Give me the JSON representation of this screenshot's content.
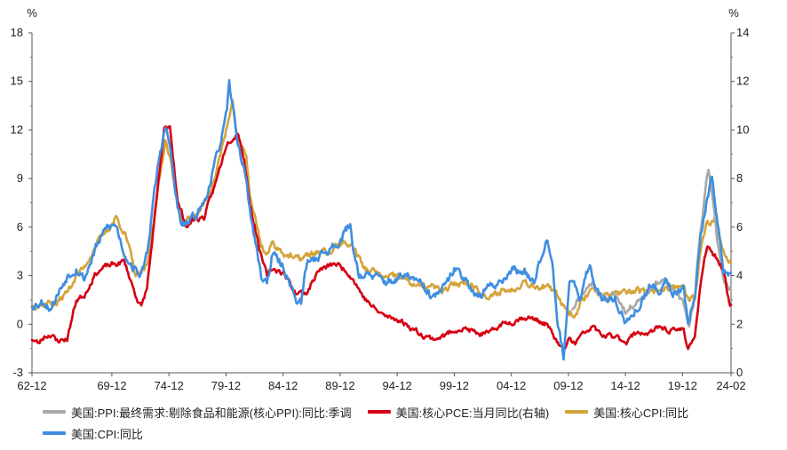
{
  "chart_data": {
    "type": "line",
    "title": "",
    "left_axis": {
      "unit": "%",
      "ticks": [
        -3,
        0,
        3,
        6,
        9,
        12,
        15,
        18
      ],
      "ylim": [
        -3,
        18
      ]
    },
    "right_axis": {
      "unit": "%",
      "ticks": [
        0,
        2,
        4,
        6,
        8,
        10,
        12,
        14
      ],
      "ylim": [
        0,
        14
      ]
    },
    "x_range": [
      1962.917,
      2024.167
    ],
    "x_ticks": [
      {
        "label": "62-12",
        "t": 1962.917
      },
      {
        "label": "69-12",
        "t": 1969.917
      },
      {
        "label": "74-12",
        "t": 1974.917
      },
      {
        "label": "79-12",
        "t": 1979.917
      },
      {
        "label": "84-12",
        "t": 1984.917
      },
      {
        "label": "89-12",
        "t": 1989.917
      },
      {
        "label": "94-12",
        "t": 1994.917
      },
      {
        "label": "99-12",
        "t": 1999.917
      },
      {
        "label": "04-12",
        "t": 2004.917
      },
      {
        "label": "09-12",
        "t": 2009.917
      },
      {
        "label": "14-12",
        "t": 2014.917
      },
      {
        "label": "19-12",
        "t": 2019.917
      },
      {
        "label": "24-02",
        "t": 2024.167
      }
    ],
    "series": [
      {
        "name": "美国:PPI:最终需求:剔除食品和能源(核心PPI):同比:季调",
        "axis": "left",
        "color": "#a9a9a9",
        "points": [
          [
            2010.25,
            1.0
          ],
          [
            2011,
            1.8
          ],
          [
            2012,
            2.6
          ],
          [
            2013,
            1.5
          ],
          [
            2014,
            1.8
          ],
          [
            2015,
            0.8
          ],
          [
            2016,
            1.5
          ],
          [
            2017,
            2.1
          ],
          [
            2018,
            2.7
          ],
          [
            2019,
            2.3
          ],
          [
            2020,
            1.3
          ],
          [
            2020.5,
            0.2
          ],
          [
            2021,
            1.5
          ],
          [
            2021.3,
            4.5
          ],
          [
            2021.7,
            7.0
          ],
          [
            2022.0,
            8.9
          ],
          [
            2022.2,
            9.6
          ],
          [
            2022.5,
            8.0
          ],
          [
            2023,
            5.0
          ],
          [
            2023.5,
            2.8
          ],
          [
            2024.0,
            2.0
          ],
          [
            2024.167,
            2.1
          ]
        ]
      },
      {
        "name": "美国:核心PCE:当月同比(右轴)",
        "axis": "right",
        "color": "#d60012",
        "points": [
          [
            1962.917,
            1.4
          ],
          [
            1963.5,
            1.2
          ],
          [
            1964,
            1.5
          ],
          [
            1964.7,
            1.6
          ],
          [
            1965,
            1.3
          ],
          [
            1966,
            1.4
          ],
          [
            1966.8,
            3.0
          ],
          [
            1967.5,
            3.2
          ],
          [
            1968.5,
            4.1
          ],
          [
            1969.5,
            4.4
          ],
          [
            1970.5,
            4.5
          ],
          [
            1971,
            4.6
          ],
          [
            1972,
            3.2
          ],
          [
            1972.5,
            2.7
          ],
          [
            1973,
            3.5
          ],
          [
            1974,
            7.8
          ],
          [
            1974.5,
            10.0
          ],
          [
            1975,
            10.2
          ],
          [
            1975.7,
            7.0
          ],
          [
            1976.5,
            6.0
          ],
          [
            1977,
            6.3
          ],
          [
            1978,
            6.4
          ],
          [
            1979,
            7.8
          ],
          [
            1980,
            9.5
          ],
          [
            1981,
            9.9
          ],
          [
            1981.5,
            8.8
          ],
          [
            1982,
            7.0
          ],
          [
            1983,
            4.8
          ],
          [
            1983.5,
            4.0
          ],
          [
            1984,
            4.3
          ],
          [
            1985,
            4.1
          ],
          [
            1986,
            3.3
          ],
          [
            1987,
            3.3
          ],
          [
            1988,
            4.2
          ],
          [
            1989.5,
            4.5
          ],
          [
            1990.5,
            4.2
          ],
          [
            1991,
            3.9
          ],
          [
            1992,
            3.1
          ],
          [
            1993,
            2.6
          ],
          [
            1994,
            2.3
          ],
          [
            1995,
            2.2
          ],
          [
            1996,
            1.9
          ],
          [
            1997,
            1.6
          ],
          [
            1998,
            1.4
          ],
          [
            1999,
            1.5
          ],
          [
            2000,
            1.8
          ],
          [
            2001,
            1.8
          ],
          [
            2002,
            1.6
          ],
          [
            2003,
            1.6
          ],
          [
            2004,
            2.0
          ],
          [
            2005,
            2.1
          ],
          [
            2006,
            2.3
          ],
          [
            2007,
            2.2
          ],
          [
            2008,
            2.0
          ],
          [
            2009,
            1.2
          ],
          [
            2009.5,
            0.9
          ],
          [
            2010,
            1.4
          ],
          [
            2010.5,
            1.2
          ],
          [
            2011,
            1.5
          ],
          [
            2012,
            1.9
          ],
          [
            2013,
            1.5
          ],
          [
            2014,
            1.5
          ],
          [
            2015,
            1.3
          ],
          [
            2016,
            1.7
          ],
          [
            2017,
            1.6
          ],
          [
            2018,
            1.9
          ],
          [
            2019,
            1.7
          ],
          [
            2020,
            1.8
          ],
          [
            2020.4,
            1.0
          ],
          [
            2020.8,
            1.4
          ],
          [
            2021,
            1.5
          ],
          [
            2021.5,
            3.6
          ],
          [
            2022.1,
            5.3
          ],
          [
            2022.5,
            4.9
          ],
          [
            2023,
            4.7
          ],
          [
            2023.5,
            4.2
          ],
          [
            2024.0,
            2.9
          ],
          [
            2024.167,
            2.8
          ]
        ]
      },
      {
        "name": "美国:核心CPI:同比",
        "axis": "left",
        "color": "#d4a43a",
        "points": [
          [
            1962.917,
            1.1
          ],
          [
            1963.5,
            1.3
          ],
          [
            1964,
            1.2
          ],
          [
            1964.5,
            1.4
          ],
          [
            1965,
            1.2
          ],
          [
            1966,
            2.0
          ],
          [
            1966.8,
            3.0
          ],
          [
            1967.5,
            3.5
          ],
          [
            1968.5,
            4.9
          ],
          [
            1969.5,
            5.8
          ],
          [
            1970.3,
            6.6
          ],
          [
            1971,
            5.7
          ],
          [
            1971.5,
            4.5
          ],
          [
            1972,
            3.0
          ],
          [
            1972.5,
            3.1
          ],
          [
            1973,
            3.6
          ],
          [
            1974,
            8.5
          ],
          [
            1974.6,
            11.4
          ],
          [
            1975,
            10.5
          ],
          [
            1975.5,
            8.0
          ],
          [
            1976,
            6.4
          ],
          [
            1977,
            6.5
          ],
          [
            1978,
            7.4
          ],
          [
            1979,
            9.2
          ],
          [
            1980,
            12.2
          ],
          [
            1980.5,
            13.5
          ],
          [
            1981,
            11.2
          ],
          [
            1981.7,
            10.5
          ],
          [
            1982,
            8.0
          ],
          [
            1983,
            4.9
          ],
          [
            1983.5,
            4.3
          ],
          [
            1984,
            5.0
          ],
          [
            1985,
            4.4
          ],
          [
            1986,
            4.0
          ],
          [
            1987,
            4.2
          ],
          [
            1988,
            4.5
          ],
          [
            1989,
            4.4
          ],
          [
            1990,
            5.1
          ],
          [
            1991,
            4.8
          ],
          [
            1991.5,
            4.3
          ],
          [
            1992,
            3.4
          ],
          [
            1993,
            3.2
          ],
          [
            1994,
            2.8
          ],
          [
            1995,
            3.0
          ],
          [
            1996,
            2.6
          ],
          [
            1997,
            2.3
          ],
          [
            1998,
            2.3
          ],
          [
            1999,
            2.0
          ],
          [
            2000,
            2.5
          ],
          [
            2001,
            2.6
          ],
          [
            2002,
            2.2
          ],
          [
            2003,
            1.5
          ],
          [
            2004,
            2.1
          ],
          [
            2005,
            2.1
          ],
          [
            2006,
            2.7
          ],
          [
            2007,
            2.4
          ],
          [
            2008,
            2.3
          ],
          [
            2009,
            1.7
          ],
          [
            2010,
            0.8
          ],
          [
            2010.5,
            0.6
          ],
          [
            2011,
            1.3
          ],
          [
            2012,
            2.3
          ],
          [
            2013,
            1.7
          ],
          [
            2014,
            1.9
          ],
          [
            2015,
            1.8
          ],
          [
            2016,
            2.2
          ],
          [
            2017,
            1.8
          ],
          [
            2018,
            2.2
          ],
          [
            2019,
            2.3
          ],
          [
            2020,
            2.3
          ],
          [
            2020.4,
            1.4
          ],
          [
            2020.8,
            1.6
          ],
          [
            2021,
            1.4
          ],
          [
            2021.5,
            4.5
          ],
          [
            2022,
            6.0
          ],
          [
            2022.7,
            6.6
          ],
          [
            2023,
            5.6
          ],
          [
            2023.5,
            4.7
          ],
          [
            2024.0,
            3.9
          ],
          [
            2024.167,
            3.8
          ]
        ]
      },
      {
        "name": "美国:CPI:同比",
        "axis": "left",
        "color": "#3f8ee0",
        "points": [
          [
            1962.917,
            1.2
          ],
          [
            1963.5,
            1.3
          ],
          [
            1964,
            1.4
          ],
          [
            1964.5,
            1.0
          ],
          [
            1965,
            1.6
          ],
          [
            1966,
            3.0
          ],
          [
            1966.8,
            3.5
          ],
          [
            1967.5,
            2.8
          ],
          [
            1968.5,
            4.7
          ],
          [
            1969.5,
            6.0
          ],
          [
            1970.3,
            6.1
          ],
          [
            1971,
            4.4
          ],
          [
            1972,
            3.3
          ],
          [
            1972.5,
            3.0
          ],
          [
            1973,
            4.5
          ],
          [
            1974,
            10.0
          ],
          [
            1974.6,
            12.2
          ],
          [
            1975,
            11.0
          ],
          [
            1975.5,
            8.0
          ],
          [
            1976,
            6.0
          ],
          [
            1977,
            6.5
          ],
          [
            1978,
            7.5
          ],
          [
            1979,
            10.0
          ],
          [
            1980,
            13.0
          ],
          [
            1980.2,
            14.8
          ],
          [
            1980.7,
            12.5
          ],
          [
            1981,
            11.0
          ],
          [
            1981.7,
            9.0
          ],
          [
            1982,
            7.0
          ],
          [
            1983,
            3.0
          ],
          [
            1983.5,
            2.6
          ],
          [
            1984,
            4.3
          ],
          [
            1985,
            3.5
          ],
          [
            1986,
            1.6
          ],
          [
            1986.5,
            1.3
          ],
          [
            1987,
            3.8
          ],
          [
            1988,
            4.2
          ],
          [
            1989,
            4.6
          ],
          [
            1990,
            5.3
          ],
          [
            1990.8,
            6.2
          ],
          [
            1991,
            5.0
          ],
          [
            1991.5,
            3.2
          ],
          [
            1992,
            3.0
          ],
          [
            1993,
            2.9
          ],
          [
            1994,
            2.6
          ],
          [
            1995,
            2.8
          ],
          [
            1996,
            3.0
          ],
          [
            1997,
            2.4
          ],
          [
            1998,
            1.6
          ],
          [
            1999,
            2.2
          ],
          [
            2000,
            3.4
          ],
          [
            2001,
            2.8
          ],
          [
            2002,
            1.6
          ],
          [
            2003,
            2.3
          ],
          [
            2004,
            2.7
          ],
          [
            2005,
            3.4
          ],
          [
            2006,
            3.2
          ],
          [
            2007,
            2.8
          ],
          [
            2008,
            5.5
          ],
          [
            2008.5,
            4.0
          ],
          [
            2009,
            0.0
          ],
          [
            2009.5,
            -2.0
          ],
          [
            2010,
            2.7
          ],
          [
            2011,
            1.6
          ],
          [
            2011.8,
            3.9
          ],
          [
            2012,
            2.9
          ],
          [
            2013,
            1.5
          ],
          [
            2014,
            1.6
          ],
          [
            2015,
            0.0
          ],
          [
            2016,
            1.0
          ],
          [
            2017,
            2.2
          ],
          [
            2018,
            2.1
          ],
          [
            2018.5,
            2.9
          ],
          [
            2019,
            1.9
          ],
          [
            2020,
            2.3
          ],
          [
            2020.4,
            0.3
          ],
          [
            2020.8,
            1.2
          ],
          [
            2021,
            1.4
          ],
          [
            2021.5,
            5.4
          ],
          [
            2022,
            7.5
          ],
          [
            2022.5,
            9.0
          ],
          [
            2023,
            6.4
          ],
          [
            2023.5,
            3.2
          ],
          [
            2024.0,
            3.1
          ],
          [
            2024.167,
            3.2
          ]
        ]
      }
    ]
  }
}
